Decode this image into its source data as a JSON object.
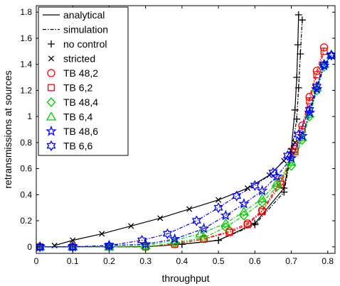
{
  "chart_data": {
    "type": "line",
    "xlabel": "throughput",
    "ylabel": "retransmissions at sources",
    "xlim": [
      0,
      0.82
    ],
    "ylim": [
      -0.05,
      1.85
    ],
    "xticks": [
      "0",
      "0.1",
      "0.2",
      "0.3",
      "0.4",
      "0.5",
      "0.6",
      "0.7",
      "0.8"
    ],
    "yticks": [
      "0",
      "0.2",
      "0.4",
      "0.6",
      "0.8",
      "1",
      "1.2",
      "1.4",
      "1.6",
      "1.8"
    ],
    "grid": false,
    "legend_position": "top-left",
    "legend": [
      {
        "label": "analytical",
        "line": "solid",
        "marker": "none",
        "color": "#000000"
      },
      {
        "label": "simulation",
        "line": "dashdot",
        "marker": "none",
        "color": "#000000"
      },
      {
        "label": "no control",
        "line": "none",
        "marker": "plus",
        "color": "#000000"
      },
      {
        "label": "stricted",
        "line": "none",
        "marker": "x",
        "color": "#000000"
      },
      {
        "label": "TB 48,2",
        "line": "none",
        "marker": "circle",
        "color": "#ff0000"
      },
      {
        "label": "TB 6,2",
        "line": "none",
        "marker": "square",
        "color": "#ff0000"
      },
      {
        "label": "TB 48,4",
        "line": "none",
        "marker": "diamond",
        "color": "#00cc00"
      },
      {
        "label": "TB 6,4",
        "line": "none",
        "marker": "triangle",
        "color": "#00cc00"
      },
      {
        "label": "TB 48,6",
        "line": "none",
        "marker": "star",
        "color": "#0000ff"
      },
      {
        "label": "TB 6,6",
        "line": "none",
        "marker": "hexagram",
        "color": "#0000ff"
      }
    ],
    "series": [
      {
        "name": "no control",
        "line": "solid",
        "color": "#000000",
        "marker": "plus",
        "x": [
          0.01,
          0.1,
          0.2,
          0.3,
          0.4,
          0.5,
          0.6,
          0.68,
          0.7,
          0.71,
          0.715,
          0.718,
          0.72
        ],
        "y": [
          0.0,
          0.0,
          0.0,
          0.0,
          0.02,
          0.05,
          0.18,
          0.45,
          0.75,
          1.05,
          1.3,
          1.55,
          1.78
        ]
      },
      {
        "name": "no control",
        "line": "dashdot",
        "color": "#000000",
        "marker": "plus",
        "x": [
          0.01,
          0.1,
          0.2,
          0.3,
          0.4,
          0.5,
          0.6,
          0.68,
          0.7,
          0.715,
          0.72,
          0.725,
          0.73
        ],
        "y": [
          0.0,
          0.0,
          0.0,
          0.0,
          0.02,
          0.05,
          0.17,
          0.42,
          0.72,
          0.98,
          1.22,
          1.48,
          1.74
        ]
      },
      {
        "name": "stricted",
        "line": "solid",
        "color": "#000000",
        "marker": "x",
        "x": [
          0.05,
          0.1,
          0.18,
          0.26,
          0.34,
          0.42,
          0.5,
          0.58,
          0.64,
          0.68,
          0.7,
          0.71
        ],
        "y": [
          0.01,
          0.05,
          0.1,
          0.16,
          0.22,
          0.29,
          0.36,
          0.45,
          0.55,
          0.66,
          0.74,
          0.8
        ]
      },
      {
        "name": "TB 48,2",
        "line": "dashdot",
        "color": "#ff0000",
        "marker": "circle",
        "x": [
          0.01,
          0.1,
          0.2,
          0.3,
          0.38,
          0.46,
          0.53,
          0.58,
          0.62,
          0.67,
          0.71,
          0.73,
          0.75,
          0.77,
          0.79
        ],
        "y": [
          0.0,
          0.0,
          0.0,
          0.0,
          0.02,
          0.06,
          0.12,
          0.18,
          0.28,
          0.5,
          0.75,
          0.93,
          1.15,
          1.35,
          1.53
        ]
      },
      {
        "name": "TB 6,2",
        "line": "dashdot",
        "color": "#ff0000",
        "marker": "square",
        "x": [
          0.01,
          0.1,
          0.2,
          0.3,
          0.38,
          0.46,
          0.53,
          0.58,
          0.62,
          0.67,
          0.71,
          0.73,
          0.75,
          0.77,
          0.79
        ],
        "y": [
          0.0,
          0.0,
          0.0,
          0.0,
          0.02,
          0.06,
          0.11,
          0.17,
          0.27,
          0.48,
          0.73,
          0.9,
          1.12,
          1.32,
          1.5
        ]
      },
      {
        "name": "TB 48,4",
        "line": "dashdot",
        "color": "#00cc00",
        "marker": "diamond",
        "x": [
          0.01,
          0.1,
          0.2,
          0.3,
          0.38,
          0.46,
          0.52,
          0.57,
          0.62,
          0.66,
          0.7,
          0.73,
          0.75,
          0.77,
          0.79,
          0.81
        ],
        "y": [
          0.0,
          0.0,
          0.0,
          0.0,
          0.03,
          0.07,
          0.15,
          0.24,
          0.34,
          0.46,
          0.62,
          0.82,
          1.0,
          1.2,
          1.38,
          1.47
        ]
      },
      {
        "name": "TB 6,4",
        "line": "dashdot",
        "color": "#00cc00",
        "marker": "triangle",
        "x": [
          0.01,
          0.1,
          0.2,
          0.3,
          0.38,
          0.45,
          0.52,
          0.57,
          0.62,
          0.66,
          0.7,
          0.73,
          0.75,
          0.77,
          0.79,
          0.81
        ],
        "y": [
          0.0,
          0.0,
          0.0,
          0.01,
          0.05,
          0.1,
          0.18,
          0.27,
          0.37,
          0.49,
          0.65,
          0.84,
          1.02,
          1.22,
          1.4,
          1.47
        ]
      },
      {
        "name": "TB 48,6",
        "line": "dashdot",
        "color": "#0000ff",
        "marker": "star",
        "x": [
          0.01,
          0.1,
          0.2,
          0.3,
          0.38,
          0.46,
          0.52,
          0.57,
          0.62,
          0.66,
          0.7,
          0.73,
          0.75,
          0.77,
          0.79,
          0.81
        ],
        "y": [
          0.0,
          0.0,
          0.01,
          0.02,
          0.06,
          0.14,
          0.24,
          0.33,
          0.43,
          0.54,
          0.68,
          0.85,
          1.03,
          1.21,
          1.39,
          1.47
        ]
      },
      {
        "name": "TB 6,6",
        "line": "dashdot",
        "color": "#0000ff",
        "marker": "hexagram",
        "x": [
          0.01,
          0.1,
          0.2,
          0.29,
          0.36,
          0.44,
          0.5,
          0.55,
          0.6,
          0.65,
          0.69,
          0.72,
          0.75,
          0.77,
          0.79,
          0.81
        ],
        "y": [
          0.0,
          0.0,
          0.01,
          0.05,
          0.1,
          0.2,
          0.3,
          0.39,
          0.47,
          0.57,
          0.7,
          0.86,
          1.05,
          1.23,
          1.4,
          1.47
        ]
      }
    ]
  }
}
